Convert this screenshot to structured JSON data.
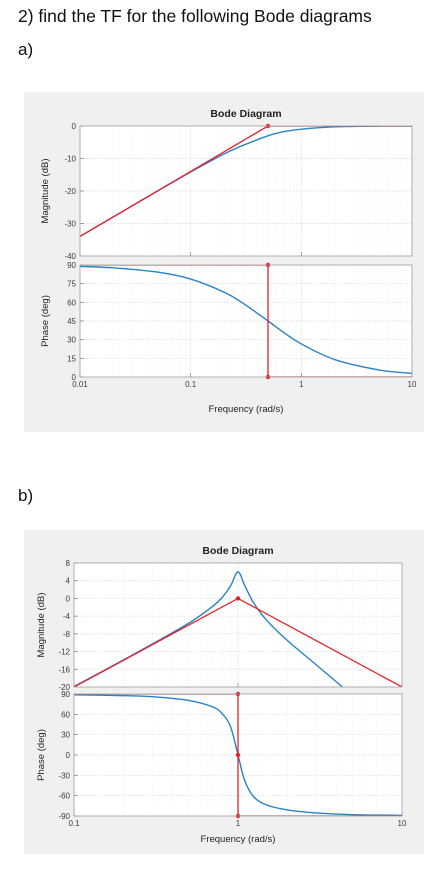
{
  "page": {
    "heading": "2) find the TF for the following Bode diagrams",
    "part_a": "a)",
    "part_b": "b)"
  },
  "colors": {
    "asymptote": "#e8202a",
    "response": "#2a82c6",
    "grid": "#d6d6d6",
    "axes": "#a0a0a0"
  },
  "chart_data": [
    {
      "type": "line",
      "title": "Bode Diagram",
      "xlabel": "Frequency (rad/s)",
      "xscale": "log",
      "xlim": [
        0.01,
        10
      ],
      "x_ticks": [
        0.01,
        0.1,
        1,
        10
      ],
      "x_tick_labels": [
        "0.01",
        "0.1",
        "1",
        "10"
      ],
      "magnitude": {
        "ylabel": "Magnitude (dB)",
        "ylim": [
          -40,
          0
        ],
        "y_ticks": [
          0,
          -10,
          -20,
          -30,
          -40
        ],
        "y_tick_labels": [
          "0",
          "-10",
          "-20",
          "-30",
          "-40"
        ],
        "response": {
          "x": [
            0.01,
            0.02,
            0.05,
            0.1,
            0.2,
            0.3,
            0.5,
            0.7,
            1,
            2,
            5,
            10
          ],
          "y": [
            -33.98,
            -27.96,
            -20.04,
            -14.15,
            -8.6,
            -5.91,
            -3.01,
            -1.73,
            -0.97,
            -0.26,
            -0.04,
            -0.01
          ]
        },
        "asymptote": {
          "x": [
            0.01,
            0.5,
            10
          ],
          "y": [
            -33.98,
            0,
            0
          ]
        },
        "markers": {
          "x": [
            0.5
          ],
          "y": [
            0
          ]
        }
      },
      "phase": {
        "ylabel": "Phase (deg)",
        "ylim": [
          0,
          90
        ],
        "y_ticks": [
          90,
          75,
          60,
          45,
          30,
          15,
          0
        ],
        "y_tick_labels": [
          "90",
          "75",
          "60",
          "45",
          "30",
          "15",
          "0"
        ],
        "response": {
          "x": [
            0.01,
            0.02,
            0.05,
            0.1,
            0.2,
            0.3,
            0.5,
            0.7,
            1,
            2,
            5,
            10
          ],
          "y": [
            88.85,
            87.71,
            84.29,
            78.69,
            68.2,
            59.04,
            45.0,
            35.54,
            26.57,
            14.04,
            5.71,
            2.86
          ]
        },
        "asymptote": {
          "x": [
            0.01,
            0.5,
            0.5,
            10
          ],
          "y": [
            90,
            90,
            0,
            0
          ]
        },
        "markers": {
          "x": [
            0.5,
            0.5
          ],
          "y": [
            90,
            0
          ]
        }
      }
    },
    {
      "type": "line",
      "title": "Bode Diagram",
      "xlabel": "Frequency (rad/s)",
      "xscale": "log",
      "xlim": [
        0.1,
        10
      ],
      "x_ticks": [
        0.1,
        1,
        10
      ],
      "x_tick_labels": [
        "0.1",
        "1",
        "10"
      ],
      "magnitude": {
        "ylabel": "Magnitude (dB)",
        "ylim": [
          -20,
          8
        ],
        "y_ticks": [
          8,
          4,
          0,
          -4,
          -8,
          -12,
          -16,
          -20
        ],
        "y_tick_labels": [
          "8",
          "4",
          "0",
          "-4",
          "-8",
          "-12",
          "-16",
          "-20"
        ],
        "response": {
          "x": [
            0.1,
            0.2,
            0.3,
            0.5,
            0.7,
            0.8,
            0.9,
            1,
            1.1,
            1.25,
            1.5,
            2,
            3,
            5,
            10
          ],
          "y": [
            -19.9,
            -13.9,
            -10.3,
            -5.6,
            -1.8,
            0.2,
            2.8,
            6.0,
            2.9,
            -1.1,
            -5.0,
            -9.5,
            -15.0,
            -22.0,
            -32.0
          ]
        },
        "asymptote": {
          "x": [
            0.1,
            1,
            10
          ],
          "y": [
            -20,
            0,
            -20
          ]
        },
        "markers": {
          "x": [
            1
          ],
          "y": [
            0
          ]
        }
      },
      "phase": {
        "ylabel": "Phase (deg)",
        "ylim": [
          -90,
          90
        ],
        "y_ticks": [
          90,
          60,
          30,
          0,
          -30,
          -60,
          -90
        ],
        "y_tick_labels": [
          "90",
          "60",
          "30",
          "0",
          "-30",
          "-60",
          "-90"
        ],
        "response": {
          "x": [
            0.1,
            0.2,
            0.3,
            0.5,
            0.7,
            0.8,
            0.9,
            1,
            1.1,
            1.25,
            1.5,
            2,
            3,
            5,
            10
          ],
          "y": [
            88.8,
            87.6,
            86.0,
            80.5,
            71.0,
            61.0,
            42.0,
            0,
            -38.0,
            -62.0,
            -74.0,
            -81.0,
            -85.5,
            -88.0,
            -89.0
          ]
        },
        "asymptote": {
          "x": [
            0.1,
            1,
            1,
            10
          ],
          "y": [
            90,
            90,
            -90,
            -90
          ]
        },
        "markers": {
          "x": [
            1,
            1,
            1
          ],
          "y": [
            90,
            0,
            -90
          ]
        }
      }
    }
  ]
}
